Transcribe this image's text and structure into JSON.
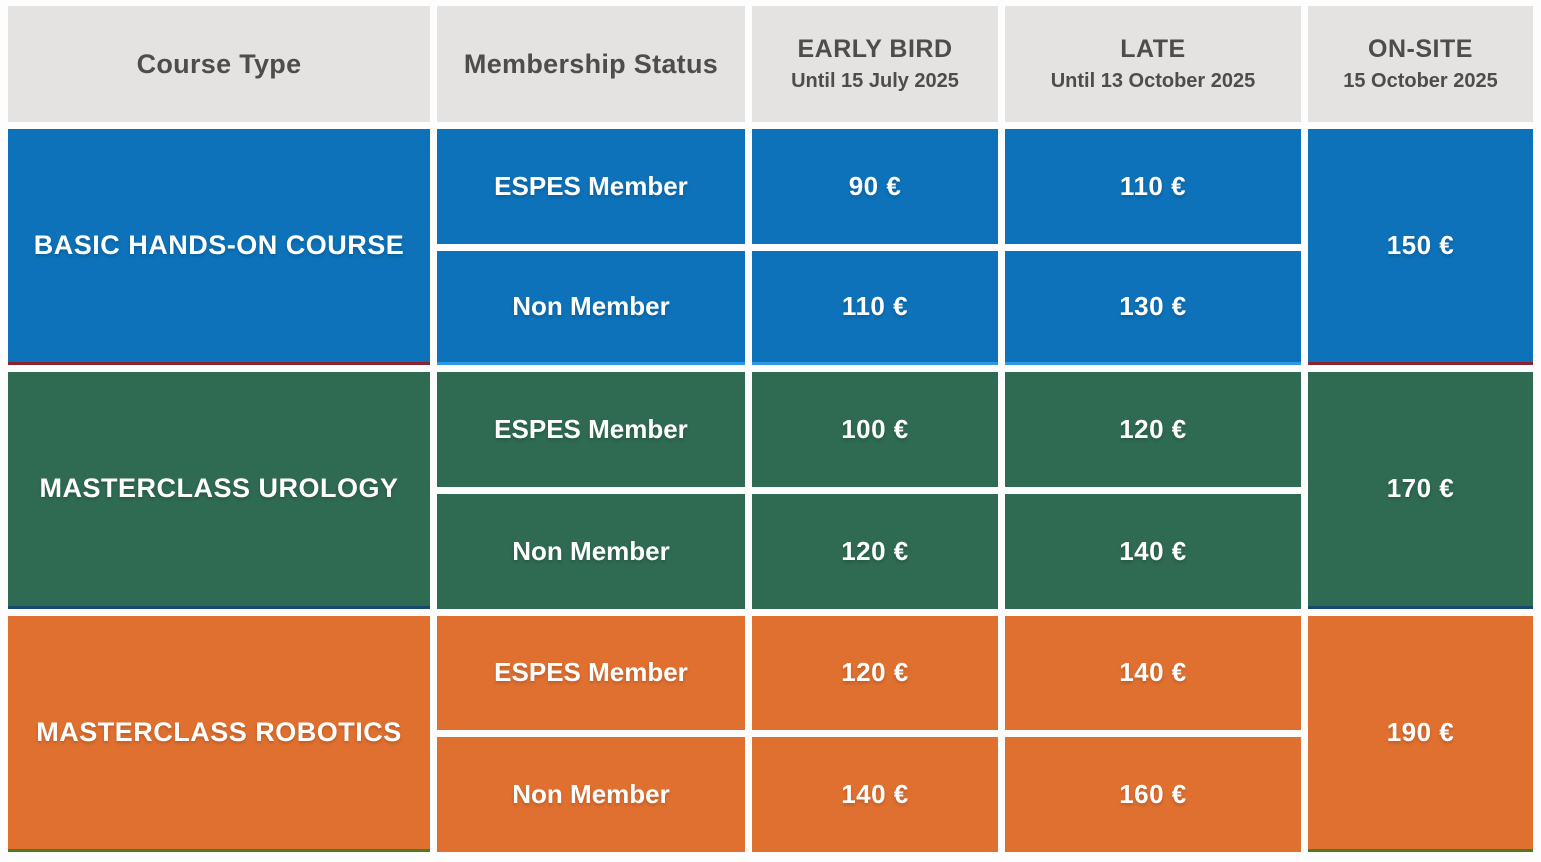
{
  "table": {
    "header": {
      "course_type": "Course Type",
      "membership_status": "Membership Status",
      "columns": [
        {
          "title": "EARLY BIRD",
          "subtitle": "Until 15 July 2025"
        },
        {
          "title": "LATE",
          "subtitle": "Until 13 October 2025"
        },
        {
          "title": "ON-SITE",
          "subtitle": "15 October 2025"
        }
      ],
      "bg_color": "#e5e3e2",
      "text_color": "#4d4d4d"
    },
    "sections": [
      {
        "course": "BASIC HANDS-ON COURSE",
        "color": "#0d72b9",
        "accent": "#8a2332",
        "row_accent": "#2e97e6",
        "rows": [
          {
            "membership": "ESPES Member",
            "early_bird": "90 €",
            "late": "110 €"
          },
          {
            "membership": "Non Member",
            "early_bird": "110 €",
            "late": "130 €"
          }
        ],
        "on_site": "150 €"
      },
      {
        "course": "MASTERCLASS UROLOGY",
        "color": "#2f6a52",
        "accent": "#17496e",
        "rows": [
          {
            "membership": "ESPES Member",
            "early_bird": "100 €",
            "late": "120 €"
          },
          {
            "membership": "Non Member",
            "early_bird": "120 €",
            "late": "140 €"
          }
        ],
        "on_site": "170 €"
      },
      {
        "course": "MASTERCLASS ROBOTICS",
        "color": "#e07030",
        "accent": "#4e7a1f",
        "rows": [
          {
            "membership": "ESPES Member",
            "early_bird": "120 €",
            "late": "140 €"
          },
          {
            "membership": "Non Member",
            "early_bird": "140 €",
            "late": "160 €"
          }
        ],
        "on_site": "190 €"
      }
    ]
  }
}
